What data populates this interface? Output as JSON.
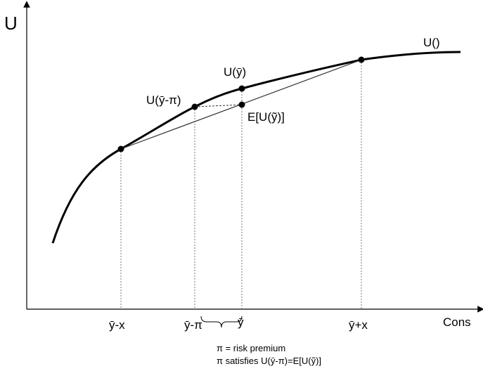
{
  "axes": {
    "y_label": "U",
    "x_label": "Cons"
  },
  "curve_label": "U()",
  "point_labels": {
    "u_ybar": "U(ȳ)",
    "u_ybar_minus_pi": "U(ȳ-π)",
    "expected_utility": "E[U(ỹ)]"
  },
  "x_ticks": {
    "ybar_minus_x": "ȳ-x",
    "ybar_minus_pi": "ȳ-π",
    "ybar": "ȳ",
    "ybar_plus_x": "ȳ+x"
  },
  "notes": {
    "line1": "π = risk premium",
    "line2": "π satisfies U(ȳ-π)=E[U(ỹ)]"
  }
}
